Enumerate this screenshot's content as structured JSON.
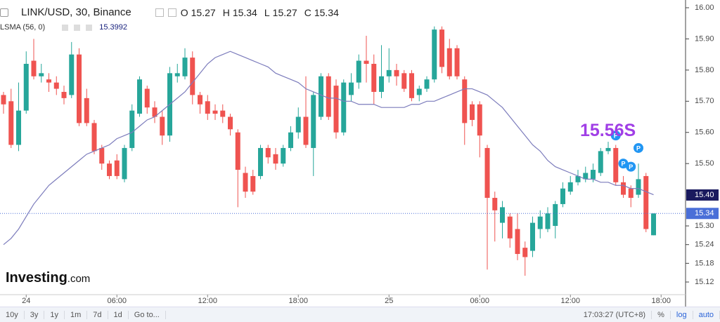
{
  "chart_data": {
    "type": "candlestick",
    "title": "LINK/USD, 30, Binance",
    "ohlc_legend": [
      {
        "label": "O",
        "value": 15.27
      },
      {
        "label": "H",
        "value": 15.34
      },
      {
        "label": "L",
        "value": 15.27
      },
      {
        "label": "C",
        "value": 15.34
      }
    ],
    "up_color": "#26a69a",
    "down_color": "#ef5350",
    "x": [
      -1.5,
      -1,
      -0.5,
      0,
      0.5,
      1,
      1.5,
      2,
      2.5,
      3,
      3.5,
      4,
      4.5,
      5,
      5.5,
      6,
      6.5,
      7,
      7.5,
      8,
      8.5,
      9,
      9.5,
      10,
      10.5,
      11,
      11.5,
      12,
      12.5,
      13,
      13.5,
      14,
      14.5,
      15,
      15.5,
      16,
      16.5,
      17,
      17.5,
      18,
      18.5,
      19,
      19.5,
      20,
      20.5,
      21,
      21.5,
      22,
      22.5,
      23,
      23.5,
      24,
      24.5,
      25,
      25.5,
      26,
      26.5,
      27,
      27.5,
      28,
      28.5,
      29,
      29.5,
      30,
      30.5,
      31,
      31.5,
      32,
      32.5,
      33,
      33.5,
      34,
      34.5,
      35,
      35.5,
      36,
      36.5,
      37,
      37.5,
      38,
      38.5,
      39,
      39.5,
      40,
      40.5,
      41,
      41.5
    ],
    "open": [
      15.72,
      15.7,
      15.56,
      15.67,
      15.83,
      15.78,
      15.77,
      15.76,
      15.73,
      15.72,
      15.85,
      15.71,
      15.63,
      15.55,
      15.5,
      15.51,
      15.45,
      15.55,
      15.66,
      15.74,
      15.68,
      15.65,
      15.59,
      15.78,
      15.78,
      15.84,
      15.72,
      15.7,
      15.67,
      15.67,
      15.65,
      15.6,
      15.47,
      15.46,
      15.46,
      15.55,
      15.53,
      15.5,
      15.55,
      15.6,
      15.65,
      15.55,
      15.65,
      15.78,
      15.75,
      15.6,
      15.72,
      15.76,
      15.83,
      15.82,
      15.73,
      15.78,
      15.8,
      15.79,
      15.79,
      15.72,
      15.74,
      15.77,
      15.93,
      15.87,
      15.87,
      15.77,
      15.69,
      15.69,
      15.55,
      15.39,
      15.31,
      15.33,
      15.29,
      15.23,
      15.22,
      15.29,
      15.29,
      15.3,
      15.37,
      15.41,
      15.44,
      15.45,
      15.45,
      15.47,
      15.54,
      15.55,
      15.44,
      15.42,
      15.4,
      15.46,
      15.27
    ],
    "high": [
      15.73,
      15.74,
      15.76,
      15.86,
      15.9,
      15.82,
      15.79,
      15.78,
      15.75,
      15.89,
      15.87,
      15.74,
      15.64,
      15.56,
      15.51,
      15.53,
      15.56,
      15.69,
      15.78,
      15.75,
      15.7,
      15.67,
      15.81,
      15.82,
      15.87,
      15.86,
      15.73,
      15.72,
      15.69,
      15.69,
      15.66,
      15.61,
      15.49,
      15.48,
      15.56,
      15.56,
      15.55,
      15.56,
      15.62,
      15.68,
      15.78,
      15.73,
      15.79,
      15.79,
      15.77,
      15.77,
      15.79,
      15.85,
      15.91,
      15.85,
      15.88,
      15.87,
      15.82,
      15.8,
      15.8,
      15.75,
      15.78,
      15.94,
      15.94,
      15.9,
      15.88,
      15.78,
      15.7,
      15.7,
      15.56,
      15.41,
      15.38,
      15.34,
      15.34,
      15.25,
      15.33,
      15.35,
      15.36,
      15.38,
      15.44,
      15.46,
      15.48,
      15.49,
      15.5,
      15.55,
      15.57,
      15.56,
      15.46,
      15.43,
      15.5,
      15.47,
      15.34
    ],
    "low": [
      15.66,
      15.55,
      15.54,
      15.66,
      15.77,
      15.76,
      15.73,
      15.72,
      15.69,
      15.71,
      15.62,
      15.62,
      15.53,
      15.48,
      15.45,
      15.45,
      15.44,
      15.54,
      15.65,
      15.66,
      15.63,
      15.56,
      15.57,
      15.76,
      15.77,
      15.69,
      15.66,
      15.64,
      15.64,
      15.63,
      15.59,
      15.36,
      15.39,
      15.4,
      15.45,
      15.5,
      15.48,
      15.49,
      15.54,
      15.58,
      15.55,
      15.46,
      15.64,
      15.64,
      15.58,
      15.59,
      15.7,
      15.74,
      15.76,
      15.69,
      15.71,
      15.76,
      15.75,
      15.73,
      15.7,
      15.7,
      15.73,
      15.76,
      15.79,
      15.77,
      15.77,
      15.56,
      15.62,
      15.52,
      15.16,
      15.25,
      15.26,
      15.23,
      15.19,
      15.14,
      15.2,
      15.26,
      15.28,
      15.26,
      15.36,
      15.4,
      15.43,
      15.44,
      15.44,
      15.46,
      15.53,
      15.43,
      15.39,
      15.36,
      15.39,
      15.28,
      15.27
    ],
    "close": [
      15.69,
      15.56,
      15.67,
      15.82,
      15.78,
      15.79,
      15.76,
      15.74,
      15.71,
      15.85,
      15.63,
      15.63,
      15.54,
      15.5,
      15.46,
      15.46,
      15.55,
      15.67,
      15.77,
      15.68,
      15.65,
      15.59,
      15.79,
      15.79,
      15.84,
      15.72,
      15.69,
      15.66,
      15.66,
      15.65,
      15.61,
      15.48,
      15.41,
      15.41,
      15.55,
      15.52,
      15.5,
      15.55,
      15.6,
      15.65,
      15.56,
      15.72,
      15.78,
      15.65,
      15.6,
      15.76,
      15.76,
      15.83,
      15.82,
      15.73,
      15.78,
      15.8,
      15.78,
      15.74,
      15.71,
      15.74,
      15.77,
      15.93,
      15.81,
      15.78,
      15.78,
      15.63,
      15.64,
      15.59,
      15.39,
      15.35,
      15.36,
      15.26,
      15.21,
      15.2,
      15.31,
      15.33,
      15.34,
      15.37,
      15.42,
      15.44,
      15.46,
      15.47,
      15.48,
      15.54,
      15.55,
      15.44,
      15.4,
      15.39,
      15.45,
      15.29,
      15.34
    ],
    "indicator": {
      "name": "LSMA (56, 0)",
      "last_value": 15.3992,
      "color": "#7c7cbc",
      "values": [
        15.24,
        15.26,
        15.29,
        15.33,
        15.37,
        15.4,
        15.43,
        15.45,
        15.47,
        15.49,
        15.51,
        15.53,
        15.54,
        15.55,
        15.56,
        15.58,
        15.59,
        15.6,
        15.62,
        15.64,
        15.65,
        15.67,
        15.69,
        15.71,
        15.73,
        15.76,
        15.79,
        15.82,
        15.84,
        15.85,
        15.86,
        15.85,
        15.84,
        15.83,
        15.82,
        15.81,
        15.79,
        15.78,
        15.77,
        15.76,
        15.74,
        15.73,
        15.72,
        15.71,
        15.71,
        15.7,
        15.7,
        15.69,
        15.69,
        15.69,
        15.68,
        15.68,
        15.68,
        15.68,
        15.69,
        15.69,
        15.7,
        15.7,
        15.71,
        15.72,
        15.73,
        15.74,
        15.74,
        15.73,
        15.72,
        15.7,
        15.68,
        15.65,
        15.62,
        15.59,
        15.56,
        15.54,
        15.51,
        15.49,
        15.48,
        15.47,
        15.46,
        15.45,
        15.45,
        15.44,
        15.44,
        15.43,
        15.43,
        15.42,
        15.42,
        15.41,
        15.4
      ],
      "tag": {
        "value": 15.3992,
        "label": "15.40"
      }
    },
    "close_tag": 15.34,
    "annotation": {
      "text": "15.56S",
      "color": "#a03ee6"
    },
    "markers": [
      {
        "label": "P",
        "x": 39,
        "y": 15.59
      },
      {
        "label": "P",
        "x": 39.5,
        "y": 15.5
      },
      {
        "label": "P",
        "x": 40,
        "y": 15.49
      },
      {
        "label": "P",
        "x": 40.5,
        "y": 15.55
      }
    ],
    "xlim": [
      -1.733,
      43.616
    ],
    "xticks": [
      {
        "value": 0,
        "label": "24"
      },
      {
        "value": 6,
        "label": "06:00"
      },
      {
        "value": 12,
        "label": "12:00"
      },
      {
        "value": 18,
        "label": "18:00"
      },
      {
        "value": 24,
        "label": "25"
      },
      {
        "value": 30,
        "label": "06:00"
      },
      {
        "value": 36,
        "label": "12:00"
      },
      {
        "value": 42,
        "label": "18:00"
      }
    ],
    "ylim": [
      15.0795,
      16.0248
    ],
    "yticks": [
      {
        "value": 16,
        "label": "16.00"
      },
      {
        "value": 15.9,
        "label": "15.90"
      },
      {
        "value": 15.8,
        "label": "15.80"
      },
      {
        "value": 15.7,
        "label": "15.70"
      },
      {
        "value": 15.6,
        "label": "15.60"
      },
      {
        "value": 15.5,
        "label": "15.50"
      },
      {
        "value": 15.3,
        "label": "15.30"
      },
      15.24,
      15.18,
      15.12
    ]
  },
  "logo": {
    "name": "Investing",
    "suffix": ".com"
  },
  "toolbar": {
    "ranges": [
      "10y",
      "3y",
      "1y",
      "1m",
      "7d",
      "1d"
    ],
    "goto": "Go to...",
    "time": "17:03:27 (UTC+8)",
    "options": [
      "%",
      "log",
      "auto"
    ]
  }
}
